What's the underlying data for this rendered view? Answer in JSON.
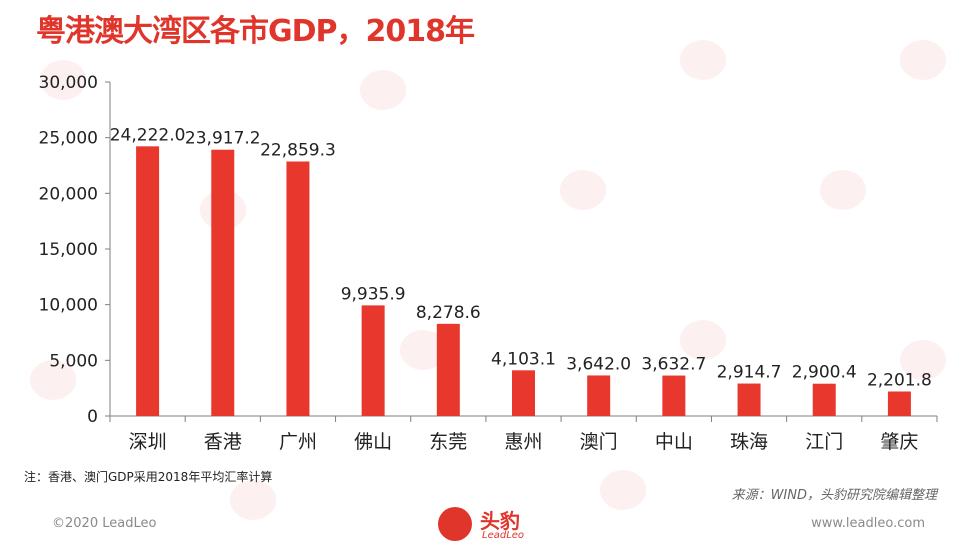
{
  "title": "粤港澳大湾区各市GDP，2018年",
  "note": "注：香港、澳门GDP采用2018年平均汇率计算",
  "source": "来源：WIND，头豹研究院编辑整理",
  "footer": {
    "copyright": "©2020 LeadLeo",
    "website": "www.leadleo.com",
    "logo_name": "头豹",
    "logo_sub": "LeadLeo"
  },
  "colors": {
    "accent": "#e0352b",
    "bar": "#e8372c",
    "axis": "#7f7f7f"
  },
  "chart_data": {
    "type": "bar",
    "categories": [
      "深圳",
      "香港",
      "广州",
      "佛山",
      "东莞",
      "惠州",
      "澳门",
      "中山",
      "珠海",
      "江门",
      "肇庆"
    ],
    "values": [
      24222.0,
      23917.2,
      22859.3,
      9935.9,
      8278.6,
      4103.1,
      3642.0,
      3632.7,
      2914.7,
      2900.4,
      2201.8
    ],
    "data_labels": [
      "24,222.0",
      "23,917.2",
      "22,859.3",
      "9,935.9",
      "8,278.6",
      "4,103.1",
      "3,642.0",
      "3,632.7",
      "2,914.7",
      "2,900.4",
      "2,201.8"
    ],
    "yticks": [
      0,
      5000,
      10000,
      15000,
      20000,
      25000,
      30000
    ],
    "ytick_labels": [
      "0",
      "5,000",
      "10,000",
      "15,000",
      "20,000",
      "25,000",
      "30,000"
    ],
    "ylim": [
      0,
      30000
    ],
    "grid": false,
    "legend": "none"
  }
}
